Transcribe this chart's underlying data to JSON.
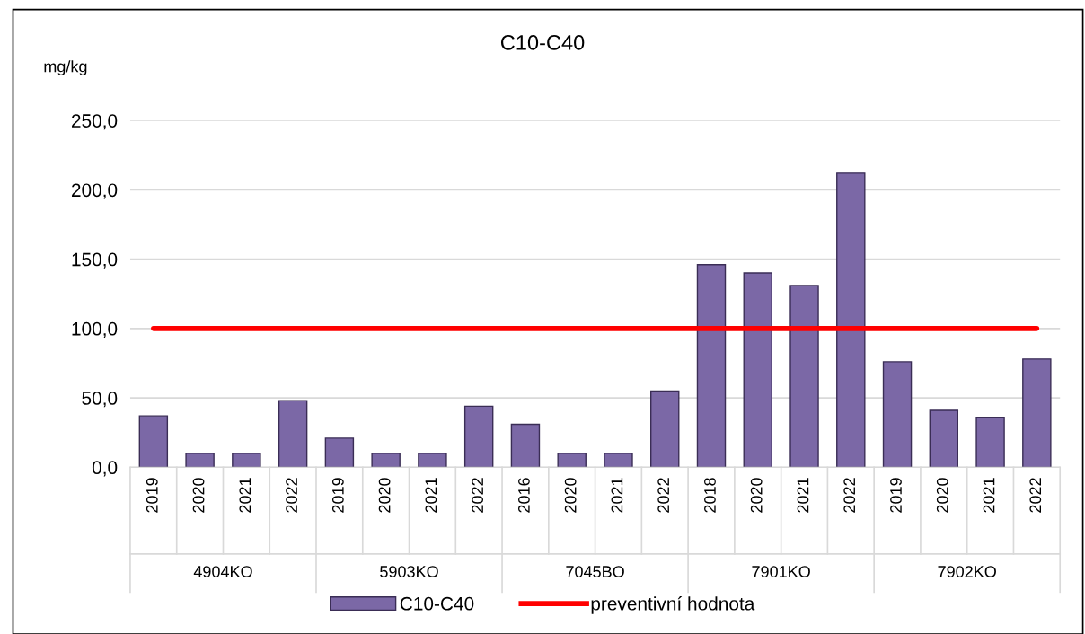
{
  "chart_data": {
    "type": "bar",
    "title": "C10-C40",
    "ylabel": "mg/kg",
    "categories": [
      "2019",
      "2020",
      "2021",
      "2022",
      "2019",
      "2020",
      "2021",
      "2022",
      "2016",
      "2020",
      "2021",
      "2022",
      "2018",
      "2020",
      "2021",
      "2022",
      "2019",
      "2020",
      "2021",
      "2022"
    ],
    "annotations": [
      "4904KO",
      "5903KO",
      "7045BO",
      "7901KO",
      "7902KO"
    ],
    "series": [
      {
        "name": "C10-C40",
        "color": "#7b68a6",
        "values": [
          37,
          10,
          10,
          48,
          21,
          10,
          10,
          44,
          31,
          10,
          10,
          55,
          146,
          140,
          131,
          212,
          76,
          41,
          36,
          78
        ]
      }
    ],
    "ref_lines": [
      {
        "axis": "y",
        "value": 100,
        "label": "preventivní hodnota",
        "color": "#ff0000",
        "line_style": "solid"
      }
    ],
    "ylim": [
      0,
      250
    ],
    "yticks": [
      {
        "value": 0,
        "label": "0,0"
      },
      {
        "value": 50,
        "label": "50,0"
      },
      {
        "value": 100,
        "label": "100,0"
      },
      {
        "value": 150,
        "label": "150,0"
      },
      {
        "value": 200,
        "label": "200,0"
      },
      {
        "value": 250,
        "label": "250,0"
      }
    ],
    "grid": "y",
    "legend": "bottom"
  }
}
